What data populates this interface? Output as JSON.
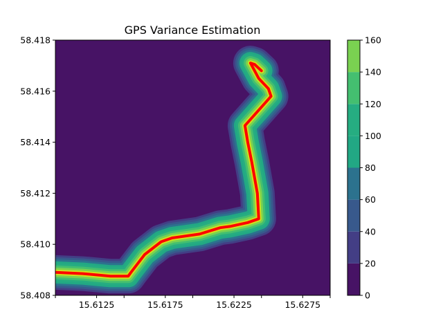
{
  "chart_data": {
    "type": "heatmap",
    "title": "GPS Variance Estimation",
    "xlabel": "",
    "ylabel": "",
    "xlim": [
      15.6095,
      15.6295
    ],
    "ylim": [
      58.408,
      58.418
    ],
    "x_ticks": [
      15.6095,
      15.6125,
      15.6145,
      15.6175,
      15.6195,
      15.6225,
      15.6245,
      15.6275,
      15.6295
    ],
    "x_tick_labels": [
      "",
      "15.6125",
      "",
      "15.6175",
      "",
      "15.6225",
      "",
      "15.6275",
      ""
    ],
    "y_ticks": [
      58.408,
      58.41,
      58.412,
      58.414,
      58.416,
      58.418
    ],
    "y_tick_labels": [
      "58.408",
      "58.410",
      "58.412",
      "58.414",
      "58.416",
      "58.418"
    ],
    "grid": false,
    "colorbar": {
      "levels": [
        0,
        20,
        40,
        60,
        80,
        100,
        120,
        140,
        160
      ],
      "tick_labels": [
        "0",
        "20",
        "40",
        "60",
        "80",
        "100",
        "120",
        "140",
        "160"
      ],
      "colors": [
        "#471365",
        "#433e85",
        "#38598c",
        "#2c728e",
        "#22a884",
        "#26ad81",
        "#44bf70",
        "#7ad151",
        "#d0e11c"
      ]
    },
    "background_color": "#471365",
    "track_color": "#ff0000",
    "track": {
      "x": [
        15.6095,
        15.6115,
        15.6135,
        15.6148,
        15.615,
        15.616,
        15.6172,
        15.618,
        15.62,
        15.6215,
        15.6222,
        15.6235,
        15.6243,
        15.6242,
        15.6238,
        15.6235,
        15.6233,
        15.6252,
        15.625,
        15.6243,
        15.6237,
        15.624,
        15.6245
      ],
      "y": [
        58.4089,
        58.40885,
        58.40875,
        58.40875,
        58.4089,
        58.4096,
        58.4101,
        58.41025,
        58.4104,
        58.41065,
        58.4107,
        58.41085,
        58.411,
        58.412,
        58.4132,
        58.414,
        58.41465,
        58.4158,
        58.4161,
        58.4165,
        58.4171,
        58.41705,
        58.4168
      ]
    }
  }
}
